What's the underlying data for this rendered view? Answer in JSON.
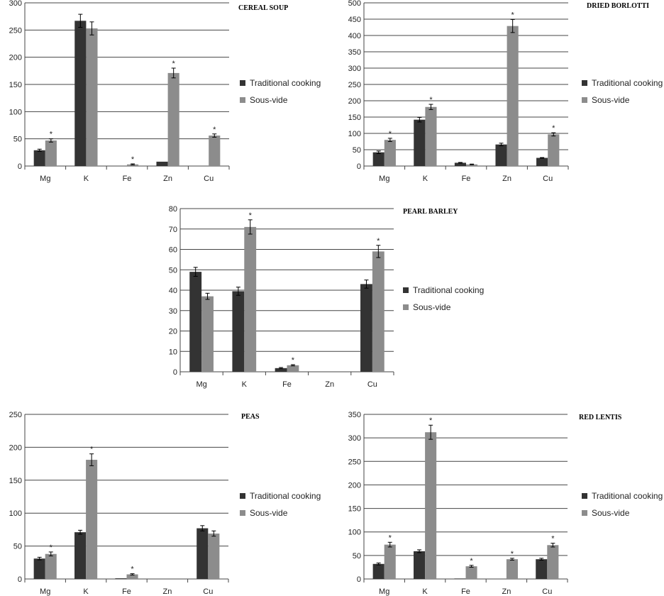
{
  "colors": {
    "traditional": "#333333",
    "sousvide": "#8c8c8c",
    "grid": "#444444"
  },
  "chart_data": [
    {
      "type": "bar",
      "title": "CEREAL SOUP",
      "categories": [
        "Mg",
        "K",
        "Fe",
        "Zn",
        "Cu"
      ],
      "ylim": [
        0,
        300
      ],
      "yticks": [
        "0",
        "50",
        "100",
        "150",
        "200",
        "250",
        "300"
      ],
      "grid": true,
      "legend": "right",
      "series": [
        {
          "name": "Traditional cooking",
          "values": [
            29,
            267,
            null,
            8,
            null
          ],
          "errors": [
            2,
            12,
            null,
            0,
            null
          ],
          "stars": [
            false,
            false,
            false,
            false,
            false
          ]
        },
        {
          "name": "Sous-vide",
          "values": [
            47,
            253,
            3,
            171,
            56
          ],
          "errors": [
            3,
            12,
            1,
            9,
            3
          ],
          "stars": [
            true,
            false,
            true,
            true,
            true
          ]
        }
      ]
    },
    {
      "type": "bar",
      "title": "DRIED BORLOTTI",
      "categories": [
        "Mg",
        "K",
        "Fe",
        "Zn",
        "Cu"
      ],
      "ylim": [
        0,
        500
      ],
      "yticks": [
        "0",
        "50",
        "100",
        "150",
        "200",
        "250",
        "300",
        "350",
        "400",
        "450",
        "500"
      ],
      "grid": true,
      "legend": "right",
      "series": [
        {
          "name": "Traditional cooking",
          "values": [
            42,
            142,
            10,
            66,
            25
          ],
          "errors": [
            4,
            7,
            1,
            4,
            1
          ],
          "stars": [
            false,
            false,
            false,
            false,
            false
          ]
        },
        {
          "name": "Sous-vide",
          "values": [
            80,
            181,
            5,
            429,
            97
          ],
          "errors": [
            5,
            8,
            1,
            20,
            5
          ],
          "stars": [
            true,
            true,
            false,
            true,
            true
          ]
        }
      ]
    },
    {
      "type": "bar",
      "title": "PEARL BARLEY",
      "categories": [
        "Mg",
        "K",
        "Fe",
        "Zn",
        "Cu"
      ],
      "ylim": [
        0,
        80
      ],
      "yticks": [
        "0",
        "10",
        "20",
        "30",
        "40",
        "50",
        "60",
        "70",
        "80"
      ],
      "grid": true,
      "legend": "right",
      "series": [
        {
          "name": "Traditional cooking",
          "values": [
            49,
            39.5,
            1.8,
            null,
            43
          ],
          "errors": [
            2.2,
            2,
            0.3,
            null,
            2
          ],
          "stars": [
            false,
            false,
            false,
            false,
            false
          ]
        },
        {
          "name": "Sous-vide",
          "values": [
            37,
            71,
            3.2,
            null,
            59
          ],
          "errors": [
            1.5,
            3.5,
            0.3,
            null,
            3
          ],
          "stars": [
            false,
            true,
            true,
            false,
            true
          ]
        }
      ]
    },
    {
      "type": "bar",
      "title": "PEAS",
      "categories": [
        "Mg",
        "K",
        "Fe",
        "Zn",
        "Cu"
      ],
      "ylim": [
        0,
        250
      ],
      "yticks": [
        "0",
        "50",
        "100",
        "150",
        "200",
        "250"
      ],
      "grid": true,
      "legend": "right",
      "series": [
        {
          "name": "Traditional cooking",
          "values": [
            31,
            71,
            1,
            null,
            77
          ],
          "errors": [
            2,
            3,
            0,
            null,
            4
          ],
          "stars": [
            false,
            false,
            false,
            false,
            false
          ]
        },
        {
          "name": "Sous-vide",
          "values": [
            38,
            181,
            7,
            null,
            69
          ],
          "errors": [
            3,
            9,
            1,
            null,
            4
          ],
          "stars": [
            true,
            true,
            true,
            false,
            false
          ]
        }
      ]
    },
    {
      "type": "bar",
      "title": "RED LENTIS",
      "categories": [
        "Mg",
        "K",
        "Fe",
        "Zn",
        "Cu"
      ],
      "ylim": [
        0,
        350
      ],
      "yticks": [
        "0",
        "50",
        "100",
        "150",
        "200",
        "250",
        "300",
        "350"
      ],
      "grid": true,
      "legend": "right",
      "series": [
        {
          "name": "Traditional cooking",
          "values": [
            32,
            59,
            1,
            null,
            42
          ],
          "errors": [
            2,
            3,
            0,
            null,
            2
          ],
          "stars": [
            false,
            false,
            false,
            false,
            false
          ]
        },
        {
          "name": "Sous-vide",
          "values": [
            73,
            312,
            27,
            42,
            72
          ],
          "errors": [
            5,
            15,
            2,
            2,
            4
          ],
          "stars": [
            true,
            true,
            true,
            true,
            true
          ]
        }
      ]
    }
  ]
}
